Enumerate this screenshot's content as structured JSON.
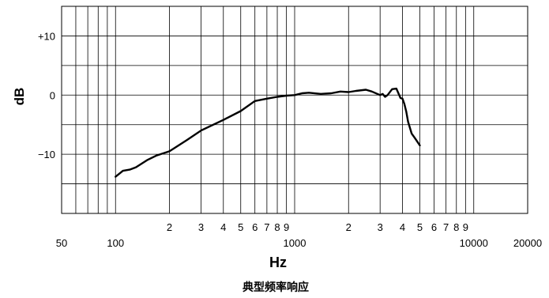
{
  "chart_data": {
    "type": "line",
    "title": "典型频率响应",
    "xlabel": "Hz",
    "ylabel": "dB",
    "x_scale": "log",
    "xlim": [
      50,
      20000
    ],
    "ylim": [
      -20,
      15
    ],
    "grid": true,
    "x_tick_labels": [
      {
        "value": 50,
        "label": "50"
      },
      {
        "value": 100,
        "label": "100"
      },
      {
        "value": 200,
        "label": "2"
      },
      {
        "value": 300,
        "label": "3"
      },
      {
        "value": 400,
        "label": "4"
      },
      {
        "value": 500,
        "label": "5"
      },
      {
        "value": 600,
        "label": "6"
      },
      {
        "value": 700,
        "label": "7"
      },
      {
        "value": 800,
        "label": "8"
      },
      {
        "value": 900,
        "label": "9"
      },
      {
        "value": 1000,
        "label": "1000"
      },
      {
        "value": 2000,
        "label": "2"
      },
      {
        "value": 3000,
        "label": "3"
      },
      {
        "value": 4000,
        "label": "4"
      },
      {
        "value": 5000,
        "label": "5"
      },
      {
        "value": 6000,
        "label": "6"
      },
      {
        "value": 7000,
        "label": "7"
      },
      {
        "value": 8000,
        "label": "8"
      },
      {
        "value": 9000,
        "label": "9"
      },
      {
        "value": 10000,
        "label": "10000"
      },
      {
        "value": 20000,
        "label": "20000"
      }
    ],
    "y_tick_labels": [
      {
        "value": 10,
        "label": "+10"
      },
      {
        "value": 0,
        "label": "0"
      },
      {
        "value": -10,
        "label": "−10"
      }
    ],
    "series": [
      {
        "x": [
          100,
          110,
          120,
          130,
          150,
          170,
          200,
          250,
          300,
          400,
          500,
          600,
          700,
          800,
          900,
          1000,
          1100,
          1200,
          1400,
          1600,
          1800,
          2000,
          2200,
          2500,
          2700,
          3000,
          3100,
          3200,
          3300,
          3500,
          3700,
          3900,
          4000,
          4100,
          4200,
          4300,
          4500,
          4700,
          5000
        ],
        "y": [
          -13.8,
          -12.8,
          -12.6,
          -12.2,
          -11,
          -10.2,
          -9.5,
          -7.6,
          -6,
          -4.2,
          -2.7,
          -1,
          -0.6,
          -0.3,
          -0.1,
          0,
          0.3,
          0.4,
          0.2,
          0.3,
          0.6,
          0.5,
          0.7,
          0.9,
          0.6,
          0,
          0.2,
          -0.3,
          0,
          1,
          1.1,
          -0.5,
          -0.6,
          -1.5,
          -2.8,
          -4.5,
          -6.5,
          -7.3,
          -8.5
        ]
      }
    ]
  }
}
